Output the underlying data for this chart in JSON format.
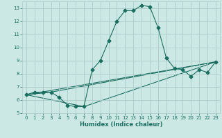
{
  "title": "",
  "xlabel": "Humidex (Indice chaleur)",
  "ylabel": "",
  "bg_color": "#cce8e4",
  "grid_color": "#aacccc",
  "line_color": "#1a6e60",
  "xlim": [
    -0.5,
    23.5
  ],
  "ylim": [
    5,
    13.5
  ],
  "yticks": [
    5,
    6,
    7,
    8,
    9,
    10,
    11,
    12,
    13
  ],
  "xticks": [
    0,
    1,
    2,
    3,
    4,
    5,
    6,
    7,
    8,
    9,
    10,
    11,
    12,
    13,
    14,
    15,
    16,
    17,
    18,
    19,
    20,
    21,
    22,
    23
  ],
  "series1": {
    "x": [
      0,
      1,
      2,
      3,
      4,
      5,
      6,
      7,
      8,
      9,
      10,
      11,
      12,
      13,
      14,
      15,
      16,
      17,
      18,
      19,
      20,
      21,
      22,
      23
    ],
    "y": [
      6.4,
      6.6,
      6.6,
      6.6,
      6.2,
      5.6,
      5.5,
      5.5,
      8.3,
      9.0,
      10.5,
      12.0,
      12.8,
      12.8,
      13.2,
      13.1,
      11.5,
      9.2,
      8.4,
      8.3,
      7.8,
      8.3,
      8.1,
      8.9
    ]
  },
  "series2": {
    "x": [
      0,
      23
    ],
    "y": [
      6.4,
      8.9
    ]
  },
  "series3": {
    "x": [
      0,
      7,
      23
    ],
    "y": [
      6.4,
      5.5,
      8.9
    ]
  },
  "series4": {
    "x": [
      0,
      3,
      23
    ],
    "y": [
      6.4,
      6.6,
      8.9
    ]
  }
}
